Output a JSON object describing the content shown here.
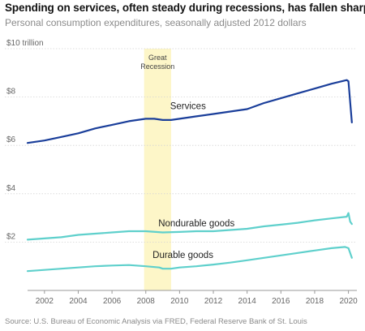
{
  "header": {
    "title": "Spending on services, often steady during recessions, has fallen sharply",
    "subtitle": "Personal consumption expenditures, seasonally adjusted 2012 dollars"
  },
  "source": "Source: U.S. Bureau of Economic Analysis via FRED, Federal Reserve Bank of St. Louis",
  "chart_data": {
    "type": "line",
    "xlim": [
      2001.0,
      2020.5
    ],
    "ylim": [
      0,
      10
    ],
    "y_ticks": [
      {
        "value": 2,
        "label": "$2"
      },
      {
        "value": 4,
        "label": "$4"
      },
      {
        "value": 6,
        "label": "$6"
      },
      {
        "value": 8,
        "label": "$8"
      },
      {
        "value": 10,
        "label": "$10 trillion"
      }
    ],
    "x_ticks": [
      {
        "value": 2002,
        "label": "2002"
      },
      {
        "value": 2004,
        "label": "2004"
      },
      {
        "value": 2006,
        "label": "2006"
      },
      {
        "value": 2008,
        "label": "2008"
      },
      {
        "value": 2010,
        "label": "2010"
      },
      {
        "value": 2012,
        "label": "2012"
      },
      {
        "value": 2014,
        "label": "2014"
      },
      {
        "value": 2016,
        "label": "2016"
      },
      {
        "value": 2018,
        "label": "2018"
      },
      {
        "value": 2020,
        "label": "2020"
      }
    ],
    "grid": "horizontal",
    "shaded_period": {
      "label_lines": [
        "Great",
        "Recession"
      ],
      "start": 2007.9,
      "end": 2009.5,
      "color": "#fdf6c8"
    },
    "series": [
      {
        "name": "Services",
        "color": "#1a3e9a",
        "label_at": {
          "x": 2010.5,
          "y": 7.5
        },
        "points": [
          [
            2001.0,
            6.1
          ],
          [
            2002.0,
            6.2
          ],
          [
            2003.0,
            6.35
          ],
          [
            2004.0,
            6.5
          ],
          [
            2005.0,
            6.7
          ],
          [
            2006.0,
            6.85
          ],
          [
            2007.0,
            7.0
          ],
          [
            2008.0,
            7.1
          ],
          [
            2008.5,
            7.1
          ],
          [
            2009.0,
            7.05
          ],
          [
            2009.5,
            7.05
          ],
          [
            2010.0,
            7.1
          ],
          [
            2011.0,
            7.2
          ],
          [
            2012.0,
            7.3
          ],
          [
            2013.0,
            7.4
          ],
          [
            2014.0,
            7.5
          ],
          [
            2015.0,
            7.75
          ],
          [
            2016.0,
            7.95
          ],
          [
            2017.0,
            8.15
          ],
          [
            2018.0,
            8.35
          ],
          [
            2019.0,
            8.55
          ],
          [
            2019.9,
            8.7
          ],
          [
            2020.0,
            8.65
          ],
          [
            2020.2,
            6.95
          ]
        ]
      },
      {
        "name": "Nondurable goods",
        "color": "#5fd0cc",
        "label_at": {
          "x": 2011.0,
          "y": 2.65
        },
        "points": [
          [
            2001.0,
            2.1
          ],
          [
            2002.0,
            2.15
          ],
          [
            2003.0,
            2.2
          ],
          [
            2004.0,
            2.3
          ],
          [
            2005.0,
            2.35
          ],
          [
            2006.0,
            2.4
          ],
          [
            2007.0,
            2.45
          ],
          [
            2008.0,
            2.45
          ],
          [
            2009.0,
            2.4
          ],
          [
            2010.0,
            2.42
          ],
          [
            2011.0,
            2.45
          ],
          [
            2012.0,
            2.45
          ],
          [
            2013.0,
            2.5
          ],
          [
            2014.0,
            2.55
          ],
          [
            2015.0,
            2.65
          ],
          [
            2016.0,
            2.72
          ],
          [
            2017.0,
            2.8
          ],
          [
            2018.0,
            2.9
          ],
          [
            2019.0,
            2.98
          ],
          [
            2019.9,
            3.05
          ],
          [
            2020.0,
            3.2
          ],
          [
            2020.1,
            2.85
          ],
          [
            2020.2,
            2.75
          ]
        ]
      },
      {
        "name": "Durable goods",
        "color": "#5fd0cc",
        "label_at": {
          "x": 2010.2,
          "y": 1.35
        },
        "points": [
          [
            2001.0,
            0.8
          ],
          [
            2002.0,
            0.85
          ],
          [
            2003.0,
            0.9
          ],
          [
            2004.0,
            0.95
          ],
          [
            2005.0,
            1.0
          ],
          [
            2006.0,
            1.03
          ],
          [
            2007.0,
            1.05
          ],
          [
            2008.0,
            1.0
          ],
          [
            2008.8,
            0.95
          ],
          [
            2009.0,
            0.9
          ],
          [
            2009.5,
            0.9
          ],
          [
            2010.0,
            0.95
          ],
          [
            2011.0,
            1.0
          ],
          [
            2012.0,
            1.07
          ],
          [
            2013.0,
            1.15
          ],
          [
            2014.0,
            1.25
          ],
          [
            2015.0,
            1.35
          ],
          [
            2016.0,
            1.45
          ],
          [
            2017.0,
            1.55
          ],
          [
            2018.0,
            1.65
          ],
          [
            2019.0,
            1.75
          ],
          [
            2019.8,
            1.8
          ],
          [
            2020.0,
            1.75
          ],
          [
            2020.2,
            1.35
          ]
        ]
      }
    ]
  }
}
